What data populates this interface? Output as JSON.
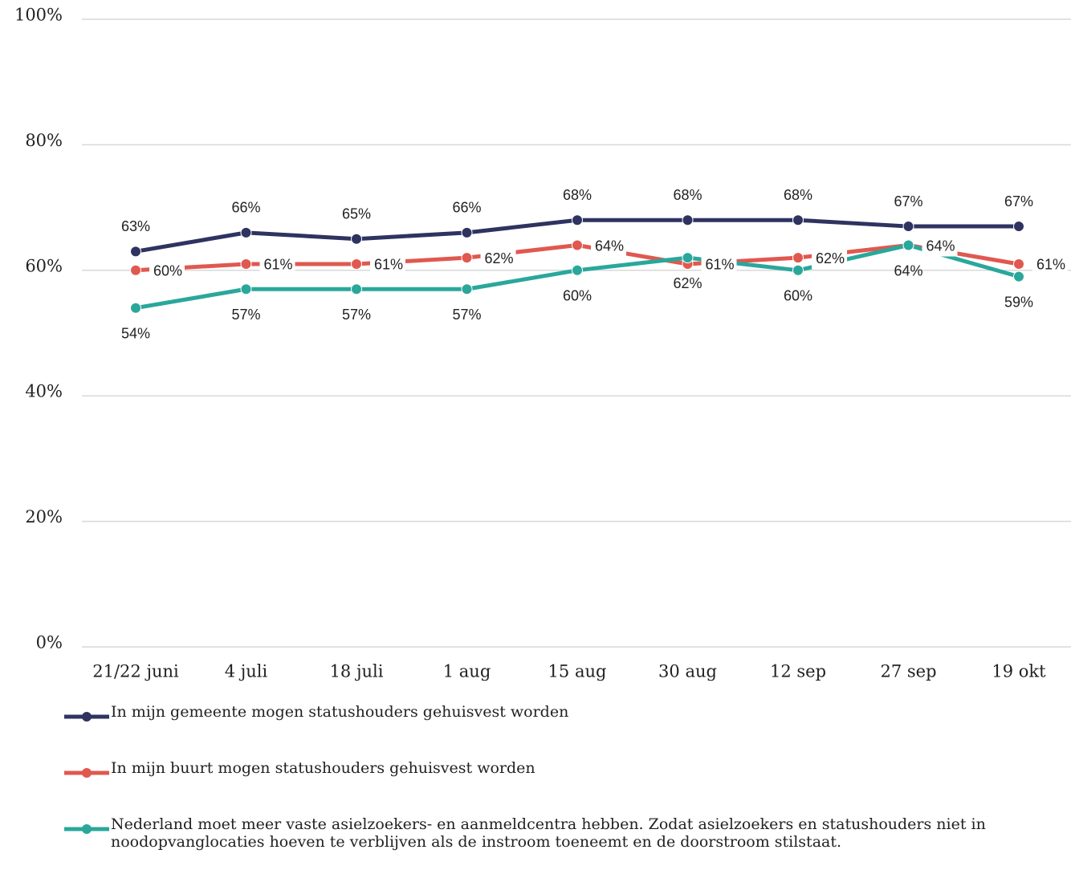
{
  "chart_data": {
    "type": "line",
    "categories": [
      "21/22 juni",
      "4 juli",
      "18 juli",
      "1 aug",
      "15 aug",
      "30 aug",
      "12 sep",
      "27 sep",
      "19 okt"
    ],
    "series": [
      {
        "name": "In mijn gemeente mogen statushouders gehuisvest worden",
        "color": "#2e3360",
        "values": [
          63,
          66,
          65,
          66,
          68,
          68,
          68,
          67,
          67
        ],
        "value_labels": [
          "63%",
          "66%",
          "65%",
          "66%",
          "68%",
          "68%",
          "68%",
          "67%",
          "67%"
        ]
      },
      {
        "name": "In mijn buurt mogen statushouders gehuisvest worden",
        "color": "#e0584f",
        "values": [
          60,
          61,
          61,
          62,
          64,
          61,
          62,
          64,
          61
        ],
        "value_labels": [
          "60%",
          "61%",
          "61%",
          "62%",
          "64%",
          "61%",
          "62%",
          "64%",
          "61%"
        ]
      },
      {
        "name": "Nederland moet meer vaste asielzoekers- en aanmeldcentra hebben. Zodat asielzoekers en statushouders niet in noodopvanglocaties hoeven te verblijven als de instroom toeneemt en de doorstroom stilstaat.",
        "color": "#2aa79b",
        "values": [
          54,
          57,
          57,
          57,
          60,
          62,
          60,
          64,
          59
        ],
        "value_labels": [
          "54%",
          "57%",
          "57%",
          "57%",
          "60%",
          "62%",
          "60%",
          "64%",
          "59%"
        ]
      }
    ],
    "ylim": [
      0,
      100
    ],
    "yticks": [
      {
        "value": 0,
        "label": "0%"
      },
      {
        "value": 20,
        "label": "20%"
      },
      {
        "value": 40,
        "label": "40%"
      },
      {
        "value": 60,
        "label": "60%"
      },
      {
        "value": 80,
        "label": "80%"
      },
      {
        "value": 100,
        "label": "100%"
      }
    ],
    "grid": true
  }
}
